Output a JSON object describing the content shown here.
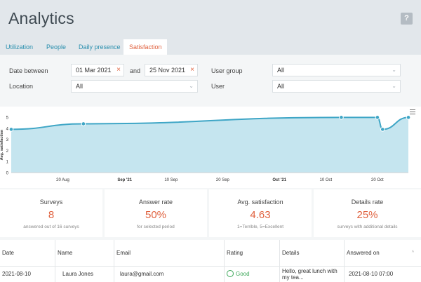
{
  "header": {
    "title": "Analytics",
    "help_label": "?"
  },
  "tabs": [
    {
      "label": "Utilization"
    },
    {
      "label": "People"
    },
    {
      "label": "Daily presence"
    },
    {
      "label": "Satisfaction",
      "active": true
    }
  ],
  "filters": {
    "date_between_label": "Date between",
    "date_from": "01 Mar 2021",
    "and_label": "and",
    "date_to": "25 Nov 2021",
    "user_group_label": "User group",
    "user_group_value": "All",
    "location_label": "Location",
    "location_value": "All",
    "user_label": "User",
    "user_value": "All"
  },
  "colors": {
    "accent": "#e0623f",
    "link": "#2a8fae",
    "area_fill": "#c5e5ef",
    "line": "#3fa6c6",
    "good": "#3aa657"
  },
  "chart_data": {
    "type": "area",
    "ylabel": "Avg. satisfaction",
    "ylim": [
      0,
      5
    ],
    "yticks": [
      0,
      1,
      2,
      3,
      4,
      5
    ],
    "xticks": [
      {
        "label": "20 Aug",
        "bold": false
      },
      {
        "label": "Sep '21",
        "bold": true
      },
      {
        "label": "10 Sep",
        "bold": false
      },
      {
        "label": "20 Sep",
        "bold": false
      },
      {
        "label": "Oct '21",
        "bold": true
      },
      {
        "label": "10 Oct",
        "bold": false
      },
      {
        "label": "20 Oct",
        "bold": false
      }
    ],
    "points": [
      {
        "x": "2021-08-10",
        "y": 3.9
      },
      {
        "x": "2021-08-24",
        "y": 4.4
      },
      {
        "x": "2021-10-13",
        "y": 4.98
      },
      {
        "x": "2021-10-20",
        "y": 4.98
      },
      {
        "x": "2021-10-21",
        "y": 3.9
      },
      {
        "x": "2021-10-26",
        "y": 4.98
      }
    ],
    "markers": [
      "2021-08-10",
      "2021-08-24",
      "2021-10-13",
      "2021-10-20",
      "2021-10-21",
      "2021-10-26"
    ],
    "grid": false
  },
  "stats": [
    {
      "title": "Surveys",
      "value": "8",
      "sub": "answered out of 16 surveys"
    },
    {
      "title": "Answer rate",
      "value": "50%",
      "sub": "for selected period"
    },
    {
      "title": "Avg. satisfaction",
      "value": "4.63",
      "sub": "1=Terrible, 5=Excellent"
    },
    {
      "title": "Details rate",
      "value": "25%",
      "sub": "surveys with additional details"
    }
  ],
  "table": {
    "columns": [
      "Date",
      "Name",
      "Email",
      "Rating",
      "Details",
      "Answered on"
    ],
    "sort_indicator": "^",
    "rows": [
      {
        "date": "2021-08-10",
        "name": "Laura Jones",
        "email": "laura@gmail.com",
        "rating": "Good",
        "details": "Hello, great lunch with my tea...",
        "answered_on": "2021-08-10 07:00"
      }
    ]
  }
}
